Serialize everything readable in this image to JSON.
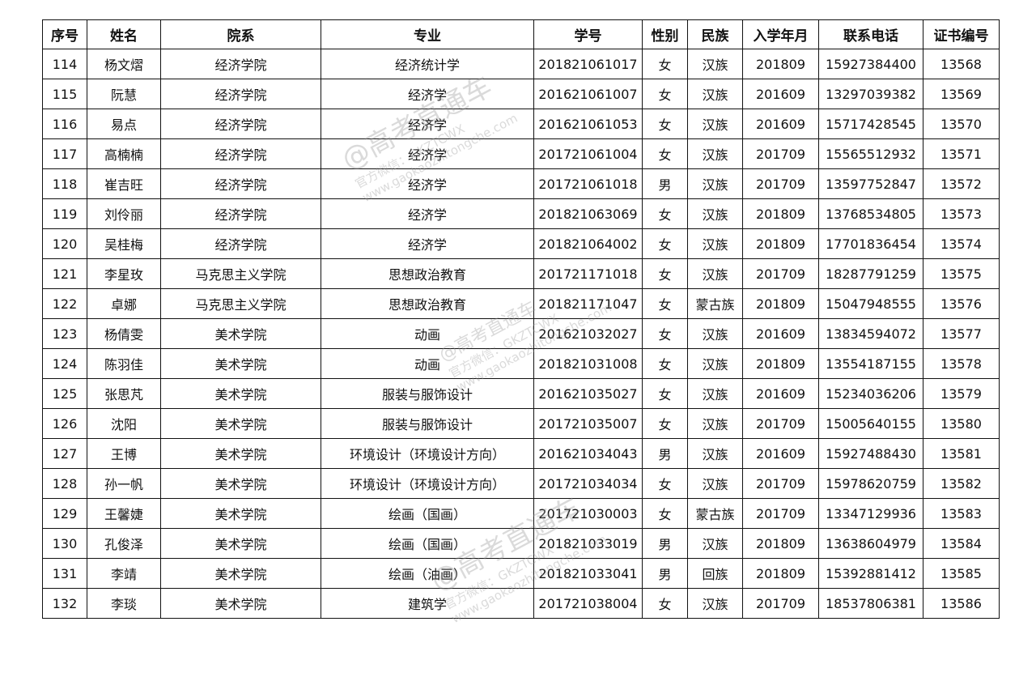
{
  "table": {
    "headers": [
      "序号",
      "姓名",
      "院系",
      "专业",
      "学号",
      "性别",
      "民族",
      "入学年月",
      "联系电话",
      "证书编号"
    ],
    "rows": [
      [
        "114",
        "杨文熠",
        "经济学院",
        "经济统计学",
        "201821061017",
        "女",
        "汉族",
        "201809",
        "15927384400",
        "13568"
      ],
      [
        "115",
        "阮慧",
        "经济学院",
        "经济学",
        "201621061007",
        "女",
        "汉族",
        "201609",
        "13297039382",
        "13569"
      ],
      [
        "116",
        "易点",
        "经济学院",
        "经济学",
        "201621061053",
        "女",
        "汉族",
        "201609",
        "15717428545",
        "13570"
      ],
      [
        "117",
        "高楠楠",
        "经济学院",
        "经济学",
        "201721061004",
        "女",
        "汉族",
        "201709",
        "15565512932",
        "13571"
      ],
      [
        "118",
        "崔吉旺",
        "经济学院",
        "经济学",
        "201721061018",
        "男",
        "汉族",
        "201709",
        "13597752847",
        "13572"
      ],
      [
        "119",
        "刘伶丽",
        "经济学院",
        "经济学",
        "201821063069",
        "女",
        "汉族",
        "201809",
        "13768534805",
        "13573"
      ],
      [
        "120",
        "吴桂梅",
        "经济学院",
        "经济学",
        "201821064002",
        "女",
        "汉族",
        "201809",
        "17701836454",
        "13574"
      ],
      [
        "121",
        "李星玫",
        "马克思主义学院",
        "思想政治教育",
        "201721171018",
        "女",
        "汉族",
        "201709",
        "18287791259",
        "13575"
      ],
      [
        "122",
        "卓娜",
        "马克思主义学院",
        "思想政治教育",
        "201821171047",
        "女",
        "蒙古族",
        "201809",
        "15047948555",
        "13576"
      ],
      [
        "123",
        "杨倩雯",
        "美术学院",
        "动画",
        "201621032027",
        "女",
        "汉族",
        "201609",
        "13834594072",
        "13577"
      ],
      [
        "124",
        "陈羽佳",
        "美术学院",
        "动画",
        "201821031008",
        "女",
        "汉族",
        "201809",
        "13554187155",
        "13578"
      ],
      [
        "125",
        "张思芃",
        "美术学院",
        "服装与服饰设计",
        "201621035027",
        "女",
        "汉族",
        "201609",
        "15234036206",
        "13579"
      ],
      [
        "126",
        "沈阳",
        "美术学院",
        "服装与服饰设计",
        "201721035007",
        "女",
        "汉族",
        "201709",
        "15005640155",
        "13580"
      ],
      [
        "127",
        "王博",
        "美术学院",
        "环境设计（环境设计方向）",
        "201621034043",
        "男",
        "汉族",
        "201609",
        "15927488430",
        "13581"
      ],
      [
        "128",
        "孙一帆",
        "美术学院",
        "环境设计（环境设计方向）",
        "201721034034",
        "女",
        "汉族",
        "201709",
        "15978620759",
        "13582"
      ],
      [
        "129",
        "王馨婕",
        "美术学院",
        "绘画（国画）",
        "201721030003",
        "女",
        "蒙古族",
        "201709",
        "13347129936",
        "13583"
      ],
      [
        "130",
        "孔俊泽",
        "美术学院",
        "绘画（国画）",
        "201821033019",
        "男",
        "汉族",
        "201809",
        "13638604979",
        "13584"
      ],
      [
        "131",
        "李靖",
        "美术学院",
        "绘画（油画）",
        "201821033041",
        "男",
        "回族",
        "201809",
        "15392881412",
        "13585"
      ],
      [
        "132",
        "李琰",
        "美术学院",
        "建筑学",
        "201721038004",
        "女",
        "汉族",
        "201709",
        "18537806381",
        "13586"
      ]
    ]
  },
  "watermark": {
    "line1": "@高考直通车",
    "line2": "官方微信：GKZTCWX",
    "line3": "www.gaokaozhitongche.com"
  }
}
